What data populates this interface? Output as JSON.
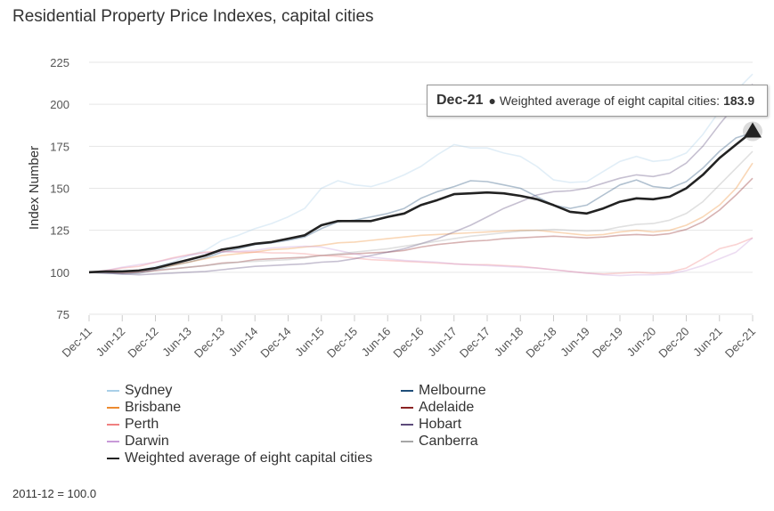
{
  "title": "Residential Property Price Indexes, capital cities",
  "footnote": "2011-12 = 100.0",
  "tooltip": {
    "date": "Dec-21",
    "series": "Weighted average of eight capital cities:",
    "value": "183.9"
  },
  "chart_data": {
    "type": "line",
    "ylabel": "Index Number",
    "ylim": [
      75,
      225
    ],
    "yticks": [
      75,
      100,
      125,
      150,
      175,
      200,
      225
    ],
    "xtick_labels": [
      "Dec-11",
      "Jun-12",
      "Dec-12",
      "Jun-13",
      "Dec-13",
      "Jun-14",
      "Dec-14",
      "Jun-15",
      "Dec-15",
      "Jun-16",
      "Dec-16",
      "Jun-17",
      "Dec-17",
      "Jun-18",
      "Dec-18",
      "Jun-19",
      "Dec-19",
      "Jun-20",
      "Dec-20",
      "Jun-21",
      "Dec-21"
    ],
    "grid": true,
    "legend_position": "bottom",
    "x": [
      "Dec-11",
      "Mar-12",
      "Jun-12",
      "Sep-12",
      "Dec-12",
      "Mar-13",
      "Jun-13",
      "Sep-13",
      "Dec-13",
      "Mar-14",
      "Jun-14",
      "Sep-14",
      "Dec-14",
      "Mar-15",
      "Jun-15",
      "Sep-15",
      "Dec-15",
      "Mar-16",
      "Jun-16",
      "Sep-16",
      "Dec-16",
      "Mar-17",
      "Jun-17",
      "Sep-17",
      "Dec-17",
      "Mar-18",
      "Jun-18",
      "Sep-18",
      "Dec-18",
      "Mar-19",
      "Jun-19",
      "Sep-19",
      "Dec-19",
      "Mar-20",
      "Jun-20",
      "Sep-20",
      "Dec-20",
      "Mar-21",
      "Jun-21",
      "Sep-21",
      "Dec-21"
    ],
    "series": [
      {
        "name": "Sydney",
        "color": "#a9cfe8",
        "values": [
          100,
          100.5,
          100.5,
          101,
          103.5,
          106,
          110,
          113,
          119,
          122,
          126,
          129,
          133,
          138,
          150,
          154.5,
          152,
          151,
          154,
          158,
          163,
          170,
          176,
          174,
          174,
          171,
          169,
          163,
          155,
          153.5,
          154,
          160,
          166,
          169,
          166,
          167,
          171,
          182,
          196,
          208,
          218
        ]
      },
      {
        "name": "Melbourne",
        "color": "#1f4e79",
        "values": [
          100,
          99.5,
          99,
          99.5,
          101.5,
          104,
          106,
          108.5,
          112,
          114,
          116.5,
          117.5,
          119,
          121,
          126,
          130,
          131,
          133,
          135,
          138,
          144,
          148,
          151,
          154.5,
          154,
          152,
          150,
          145,
          140,
          138,
          140,
          146,
          152,
          155,
          151,
          150,
          154,
          162,
          172,
          180,
          183
        ]
      },
      {
        "name": "Brisbane",
        "color": "#ed8b30",
        "values": [
          100,
          100,
          100.5,
          101,
          102.5,
          104,
          106,
          108,
          110,
          111,
          112,
          113.5,
          114,
          115,
          116,
          117.5,
          118,
          119,
          120,
          121,
          122,
          122.5,
          123,
          123.5,
          124,
          124.5,
          125,
          125,
          124,
          123,
          122,
          122.5,
          124,
          125,
          124,
          125,
          128,
          133,
          140,
          150,
          165
        ]
      },
      {
        "name": "Adelaide",
        "color": "#8b2323",
        "values": [
          100,
          100,
          99.5,
          100,
          101,
          102,
          103,
          104,
          105.5,
          106,
          107.5,
          108,
          108.5,
          109,
          110,
          110.5,
          111,
          111.5,
          112,
          113,
          115,
          116.5,
          117.5,
          118.5,
          119,
          120,
          120.5,
          121,
          121.5,
          121,
          120.5,
          121,
          122,
          122.5,
          122,
          123,
          125.5,
          130,
          137,
          146,
          156
        ]
      },
      {
        "name": "Perth",
        "color": "#f08080",
        "values": [
          100,
          101,
          102.5,
          103.5,
          106,
          108.5,
          110.5,
          112,
          112.5,
          112,
          112,
          111.5,
          111.5,
          111,
          110,
          109.5,
          108.5,
          107.5,
          107,
          106.5,
          106,
          105.5,
          105,
          104.5,
          104.5,
          104,
          103.5,
          102.5,
          101.5,
          100.5,
          99.5,
          99,
          99.5,
          100,
          99.5,
          100,
          102.5,
          108,
          114,
          116.5,
          120.5
        ]
      },
      {
        "name": "Hobart",
        "color": "#5c4a7a",
        "values": [
          100,
          99.5,
          99,
          98.5,
          99,
          99.5,
          100,
          100.5,
          101.5,
          102.5,
          103.5,
          104,
          104.5,
          105,
          106,
          106.5,
          108,
          110,
          112,
          114,
          117,
          120,
          124,
          128,
          133,
          138,
          142,
          146,
          148,
          148.5,
          150,
          153,
          156,
          158,
          157,
          159,
          165,
          175,
          188,
          200,
          212
        ]
      },
      {
        "name": "Darwin",
        "color": "#c89ad8",
        "values": [
          100,
          101,
          103,
          104.5,
          106,
          108,
          110,
          111.5,
          112,
          112.5,
          113,
          114.5,
          115,
          115.5,
          115,
          113,
          111,
          109,
          108,
          107,
          106.5,
          106,
          105,
          104.5,
          104,
          103.5,
          103,
          102.5,
          101.5,
          100.5,
          99.5,
          98.5,
          98,
          98.5,
          98.5,
          99,
          101,
          104,
          108,
          112,
          120.5
        ]
      },
      {
        "name": "Canberra",
        "color": "#a6a6a6",
        "values": [
          100,
          100,
          100.5,
          101,
          101.5,
          102,
          103,
          104,
          105,
          106,
          106.5,
          107,
          107.5,
          108.5,
          110,
          111,
          112,
          113,
          114,
          115.5,
          117,
          118.5,
          120,
          121.5,
          122.5,
          123.5,
          124.5,
          125,
          125.5,
          125,
          124.5,
          125,
          127,
          128.5,
          129,
          131,
          135,
          142,
          152,
          162,
          172
        ]
      },
      {
        "name": "Weighted average of eight capital cities",
        "color": "#222222",
        "values": [
          100,
          100.5,
          100.5,
          101,
          102.5,
          105,
          107.5,
          110,
          113.5,
          115,
          117,
          118,
          120,
          122,
          128,
          130.5,
          130.5,
          130.5,
          133,
          135,
          140,
          143,
          146.5,
          147,
          147.5,
          147,
          145.5,
          143.5,
          140,
          136,
          135,
          138,
          142,
          144,
          143.5,
          145,
          150,
          158,
          168,
          176,
          183.9
        ]
      }
    ]
  }
}
